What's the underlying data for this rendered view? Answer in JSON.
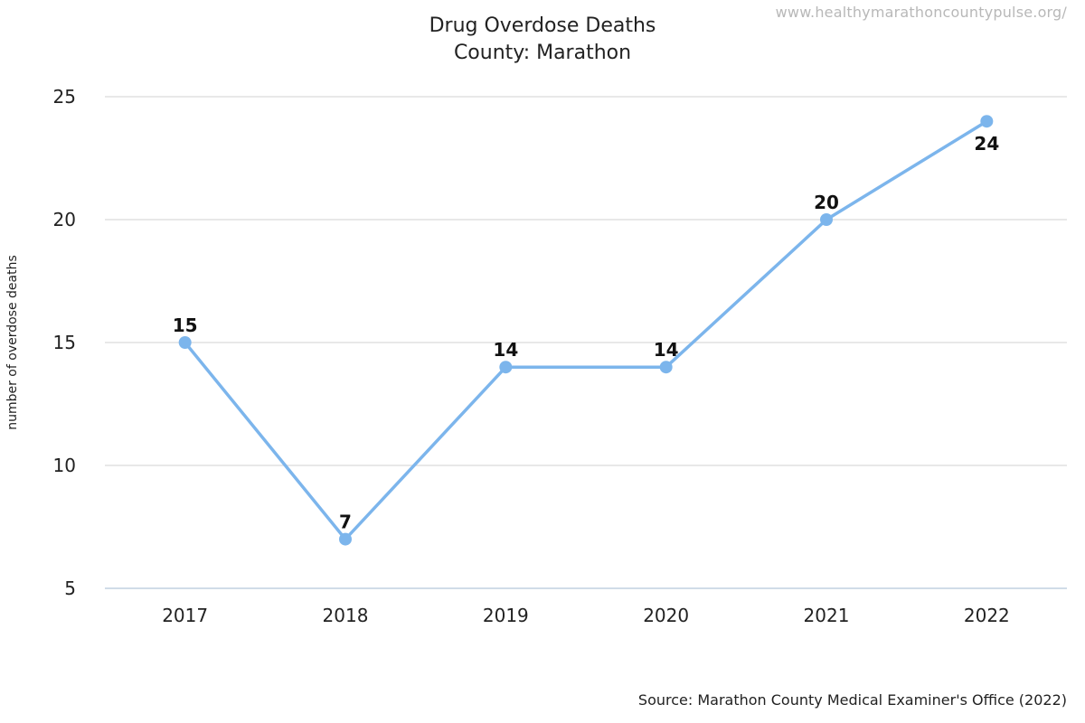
{
  "watermark": "www.healthymarathoncountypulse.org/",
  "title_line1": "Drug Overdose Deaths",
  "title_line2": "County: Marathon",
  "source": "Source: Marathon County Medical Examiner's Office (2022)",
  "colors": {
    "line": "#7cb5ec",
    "grid": "#e0e0e0",
    "axis": "#c0d0e0"
  },
  "chart_data": {
    "type": "line",
    "title": "Drug Overdose Deaths",
    "subtitle": "County: Marathon",
    "categories": [
      "2017",
      "2018",
      "2019",
      "2020",
      "2021",
      "2022"
    ],
    "series": [
      {
        "values": [
          15,
          7,
          14,
          14,
          20,
          24
        ]
      }
    ],
    "xlabel": "",
    "ylabel": "number of overdose deaths",
    "ylim": [
      5,
      25
    ],
    "yticks": [
      5,
      10,
      15,
      20,
      25
    ],
    "grid": true,
    "legend": "none"
  }
}
